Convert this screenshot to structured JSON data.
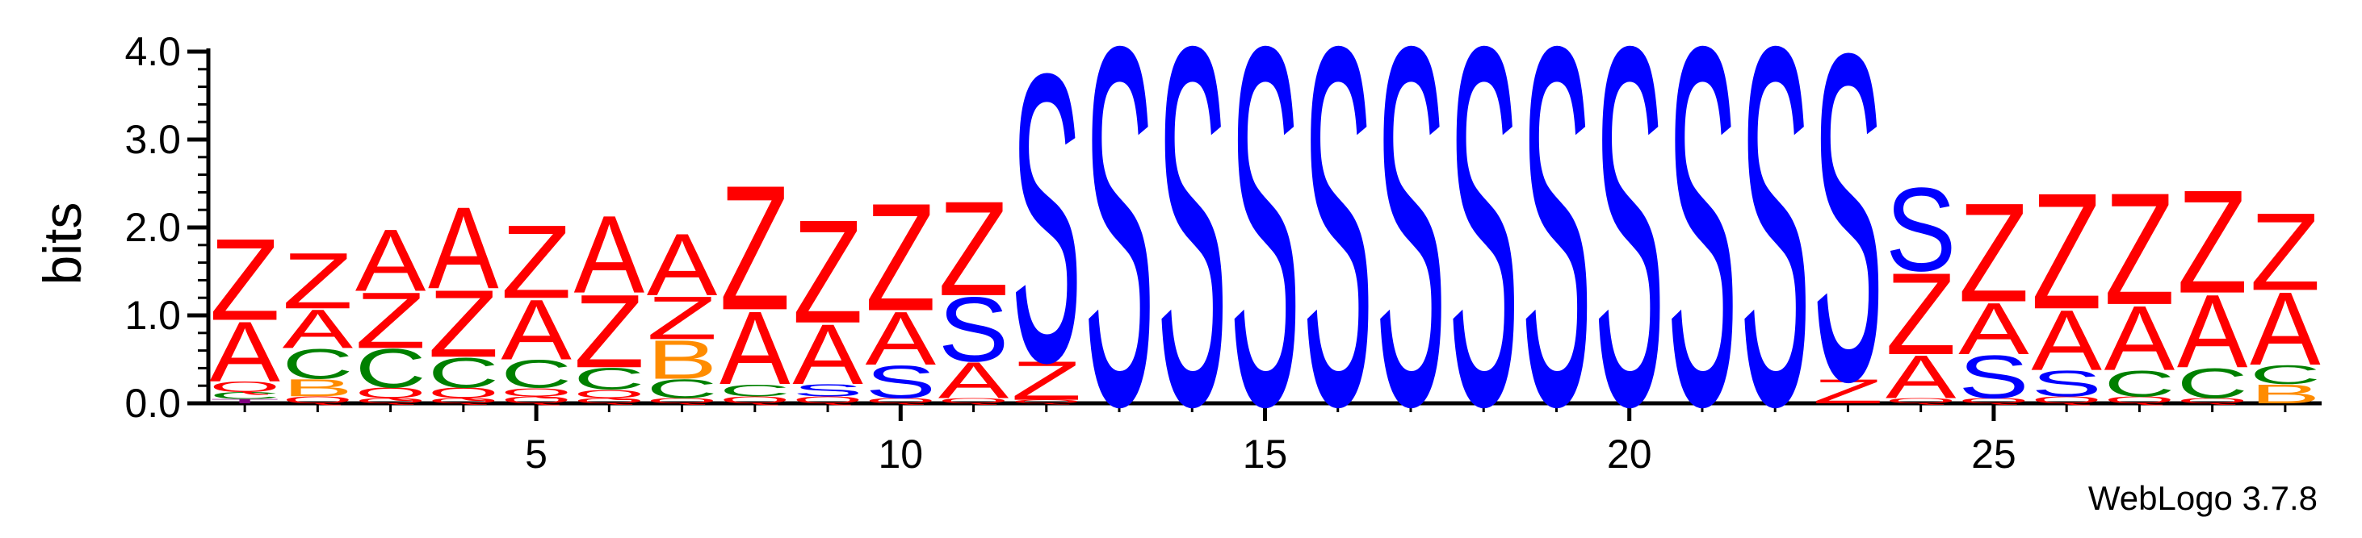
{
  "chart_data": {
    "type": "sequence-logo",
    "ylabel": "bits",
    "ylim": [
      0,
      4.0
    ],
    "y_ticks": [
      "0.0",
      "1.0",
      "2.0",
      "3.0",
      "4.0"
    ],
    "x_ticks": [
      5,
      10,
      15,
      20,
      25
    ],
    "positions": 29,
    "credit": "WebLogo 3.7.8",
    "colors": {
      "Z": "#ff0000",
      "A": "#ff0000",
      "S": "#0000ff",
      "C": "#008000",
      "B": "#ff8c00",
      "T": "#800080",
      "Q": "#ff0000"
    },
    "columns": [
      {
        "pos": 1,
        "stack": [
          [
            "T",
            0.05
          ],
          [
            "C",
            0.08
          ],
          [
            "Q",
            0.12
          ],
          [
            "A",
            0.7
          ],
          [
            "Z",
            0.95
          ]
        ]
      },
      {
        "pos": 2,
        "stack": [
          [
            "Q",
            0.08
          ],
          [
            "B",
            0.2
          ],
          [
            "C",
            0.35
          ],
          [
            "A",
            0.45
          ],
          [
            "Z",
            0.65
          ]
        ]
      },
      {
        "pos": 3,
        "stack": [
          [
            "Q",
            0.06
          ],
          [
            "Q",
            0.12
          ],
          [
            "C",
            0.45
          ],
          [
            "Z",
            0.65
          ],
          [
            "A",
            0.72
          ]
        ]
      },
      {
        "pos": 4,
        "stack": [
          [
            "Q",
            0.06
          ],
          [
            "Q",
            0.12
          ],
          [
            "C",
            0.35
          ],
          [
            "Z",
            0.78
          ],
          [
            "A",
            0.95
          ]
        ]
      },
      {
        "pos": 5,
        "stack": [
          [
            "Q",
            0.08
          ],
          [
            "Q",
            0.1
          ],
          [
            "C",
            0.32
          ],
          [
            "A",
            0.7
          ],
          [
            "Z",
            0.85
          ]
        ]
      },
      {
        "pos": 6,
        "stack": [
          [
            "Q",
            0.06
          ],
          [
            "Q",
            0.1
          ],
          [
            "C",
            0.25
          ],
          [
            "Z",
            0.85
          ],
          [
            "A",
            0.9
          ]
        ]
      },
      {
        "pos": 7,
        "stack": [
          [
            "Q",
            0.06
          ],
          [
            "C",
            0.22
          ],
          [
            "B",
            0.45
          ],
          [
            "Z",
            0.5
          ],
          [
            "A",
            0.72
          ]
        ]
      },
      {
        "pos": 8,
        "stack": [
          [
            "Q",
            0.08
          ],
          [
            "C",
            0.14
          ],
          [
            "A",
            0.85
          ],
          [
            "Z",
            1.45
          ]
        ]
      },
      {
        "pos": 9,
        "stack": [
          [
            "Q",
            0.08
          ],
          [
            "S",
            0.14
          ],
          [
            "A",
            0.7
          ],
          [
            "Z",
            1.2
          ]
        ]
      },
      {
        "pos": 10,
        "stack": [
          [
            "Q",
            0.06
          ],
          [
            "S",
            0.38
          ],
          [
            "A",
            0.62
          ],
          [
            "Z",
            1.25
          ]
        ]
      },
      {
        "pos": 11,
        "stack": [
          [
            "Q",
            0.06
          ],
          [
            "A",
            0.42
          ],
          [
            "S",
            0.75
          ],
          [
            "Z",
            1.1
          ]
        ]
      },
      {
        "pos": 12,
        "stack": [
          [
            "Q",
            0.04
          ],
          [
            "Z",
            0.45
          ],
          [
            "S",
            3.35
          ]
        ]
      },
      {
        "pos": 13,
        "stack": [
          [
            "S",
            4.17
          ]
        ]
      },
      {
        "pos": 14,
        "stack": [
          [
            "S",
            4.17
          ]
        ]
      },
      {
        "pos": 15,
        "stack": [
          [
            "S",
            4.17
          ]
        ]
      },
      {
        "pos": 16,
        "stack": [
          [
            "S",
            4.17
          ]
        ]
      },
      {
        "pos": 17,
        "stack": [
          [
            "S",
            4.17
          ]
        ]
      },
      {
        "pos": 18,
        "stack": [
          [
            "S",
            4.17
          ]
        ]
      },
      {
        "pos": 19,
        "stack": [
          [
            "S",
            4.17
          ]
        ]
      },
      {
        "pos": 20,
        "stack": [
          [
            "S",
            4.17
          ]
        ]
      },
      {
        "pos": 21,
        "stack": [
          [
            "S",
            4.17
          ]
        ]
      },
      {
        "pos": 22,
        "stack": [
          [
            "S",
            4.17
          ]
        ]
      },
      {
        "pos": 23,
        "stack": [
          [
            "Z",
            0.28
          ],
          [
            "S",
            3.8
          ]
        ]
      },
      {
        "pos": 24,
        "stack": [
          [
            "Q",
            0.06
          ],
          [
            "A",
            0.5
          ],
          [
            "Z",
            0.95
          ],
          [
            "S",
            0.97
          ]
        ]
      },
      {
        "pos": 25,
        "stack": [
          [
            "Q",
            0.06
          ],
          [
            "S",
            0.5
          ],
          [
            "A",
            0.6
          ],
          [
            "Z",
            1.15
          ]
        ]
      },
      {
        "pos": 26,
        "stack": [
          [
            "Q",
            0.08
          ],
          [
            "S",
            0.3
          ],
          [
            "A",
            0.7
          ],
          [
            "Z",
            1.35
          ]
        ]
      },
      {
        "pos": 27,
        "stack": [
          [
            "Q",
            0.08
          ],
          [
            "C",
            0.3
          ],
          [
            "A",
            0.75
          ],
          [
            "Z",
            1.3
          ]
        ]
      },
      {
        "pos": 28,
        "stack": [
          [
            "Q",
            0.06
          ],
          [
            "C",
            0.35
          ],
          [
            "A",
            0.85
          ],
          [
            "Z",
            1.2
          ]
        ]
      },
      {
        "pos": 29,
        "stack": [
          [
            "B",
            0.22
          ],
          [
            "C",
            0.22
          ],
          [
            "A",
            0.85
          ],
          [
            "Z",
            0.9
          ]
        ]
      }
    ]
  }
}
